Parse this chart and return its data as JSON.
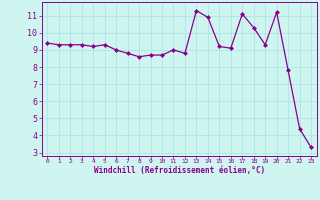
{
  "x": [
    0,
    1,
    2,
    3,
    4,
    5,
    6,
    7,
    8,
    9,
    10,
    11,
    12,
    13,
    14,
    15,
    16,
    17,
    18,
    19,
    20,
    21,
    22,
    23
  ],
  "y": [
    9.4,
    9.3,
    9.3,
    9.3,
    9.2,
    9.3,
    9.0,
    8.8,
    8.6,
    8.7,
    8.7,
    9.0,
    8.8,
    11.3,
    10.9,
    9.2,
    9.1,
    11.1,
    10.3,
    9.3,
    11.2,
    7.8,
    4.4,
    3.3
  ],
  "ylim_min": 2.8,
  "ylim_max": 11.8,
  "xlim_min": -0.5,
  "xlim_max": 23.5,
  "yticks": [
    3,
    4,
    5,
    6,
    7,
    8,
    9,
    10,
    11
  ],
  "xticks": [
    0,
    1,
    2,
    3,
    4,
    5,
    6,
    7,
    8,
    9,
    10,
    11,
    12,
    13,
    14,
    15,
    16,
    17,
    18,
    19,
    20,
    21,
    22,
    23
  ],
  "line_color": "#8b008b",
  "marker_color": "#8b008b",
  "bg_color": "#cef5f0",
  "grid_color": "#b0e8e8",
  "xlabel": "Windchill (Refroidissement éolien,°C)",
  "xlabel_color": "#8b008b",
  "tick_color": "#8b008b",
  "spine_color": "#8b008b"
}
